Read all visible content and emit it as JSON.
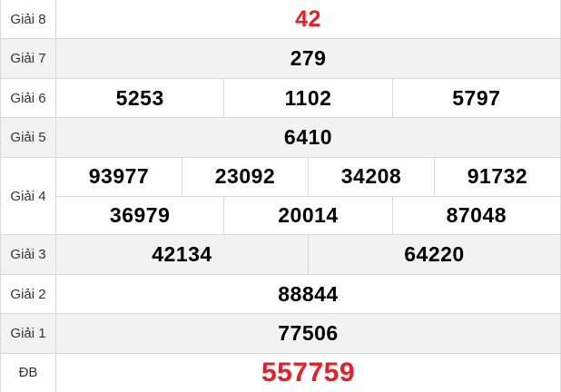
{
  "theme": {
    "highlight_red": "#ed1c24",
    "shaded_row_bg": "#f2f2f2",
    "border_color": "#d9d9d9",
    "value_color": "#000000",
    "label_color": "#333333"
  },
  "table": {
    "rows": [
      {
        "label": "Giải 8",
        "groups": [
          [
            "42"
          ]
        ],
        "shaded": false,
        "style": "red"
      },
      {
        "label": "Giải 7",
        "groups": [
          [
            "279"
          ]
        ],
        "shaded": true,
        "style": "normal"
      },
      {
        "label": "Giải 6",
        "groups": [
          [
            "5253",
            "1102",
            "5797"
          ]
        ],
        "shaded": false,
        "style": "normal"
      },
      {
        "label": "Giải 5",
        "groups": [
          [
            "6410"
          ]
        ],
        "shaded": true,
        "style": "normal"
      },
      {
        "label": "Giải 4",
        "groups": [
          [
            "93977",
            "23092",
            "34208",
            "91732"
          ],
          [
            "36979",
            "20014",
            "87048"
          ]
        ],
        "shaded": false,
        "style": "normal"
      },
      {
        "label": "Giải 3",
        "groups": [
          [
            "42134",
            "64220"
          ]
        ],
        "shaded": true,
        "style": "normal"
      },
      {
        "label": "Giải 2",
        "groups": [
          [
            "88844"
          ]
        ],
        "shaded": false,
        "style": "normal"
      },
      {
        "label": "Giải 1",
        "groups": [
          [
            "77506"
          ]
        ],
        "shaded": true,
        "style": "normal"
      },
      {
        "label": "ĐB",
        "groups": [
          [
            "557759"
          ]
        ],
        "shaded": false,
        "style": "red-big"
      }
    ]
  }
}
